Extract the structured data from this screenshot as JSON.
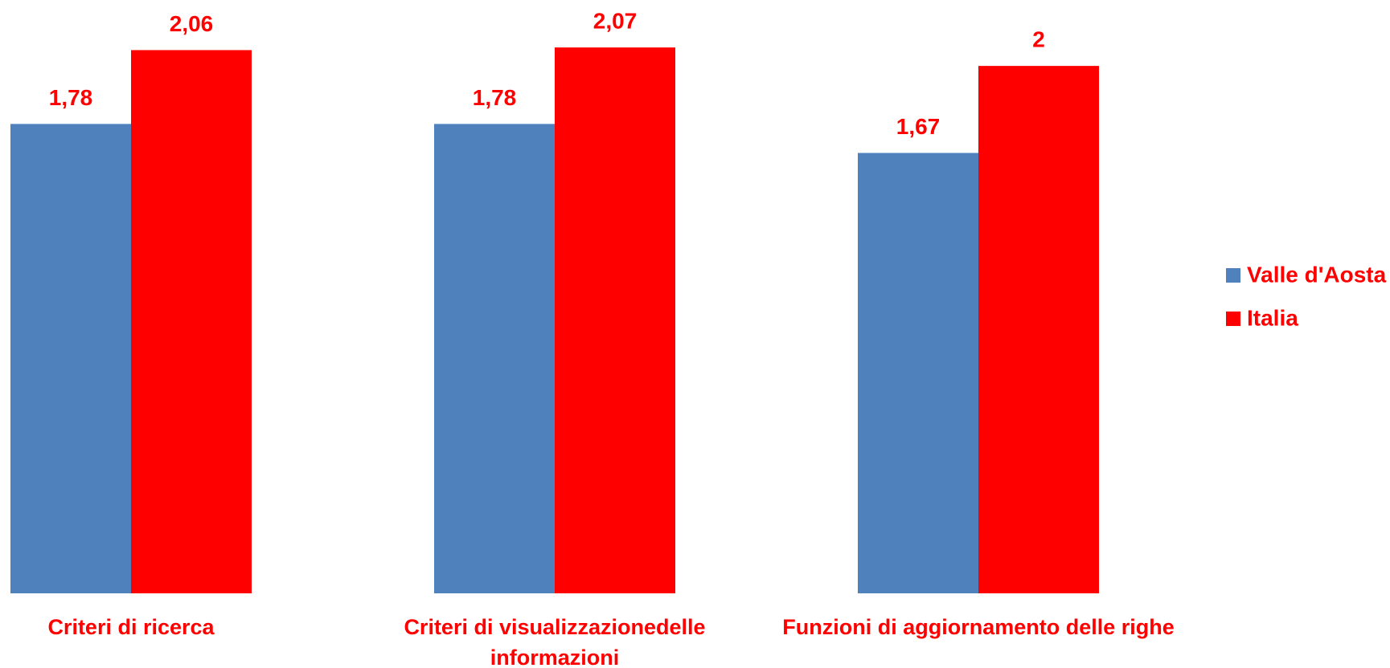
{
  "chart_data": {
    "type": "bar",
    "categories": [
      "Criteri di ricerca",
      "Criteri di visualizzazionedelle informazioni",
      "Funzioni di aggiornamento delle righe"
    ],
    "series": [
      {
        "name": "Valle d'Aosta",
        "color": "#4f81bd",
        "values": [
          1.78,
          1.78,
          1.67
        ],
        "value_labels": [
          "1,78",
          "1,78",
          "1,67"
        ]
      },
      {
        "name": "Italia",
        "color": "#ff0000",
        "values": [
          2.06,
          2.07,
          2
        ],
        "value_labels": [
          "2,06",
          "2,07",
          "2"
        ]
      }
    ],
    "ylim": [
      0,
      2.25
    ],
    "legend": "right"
  }
}
